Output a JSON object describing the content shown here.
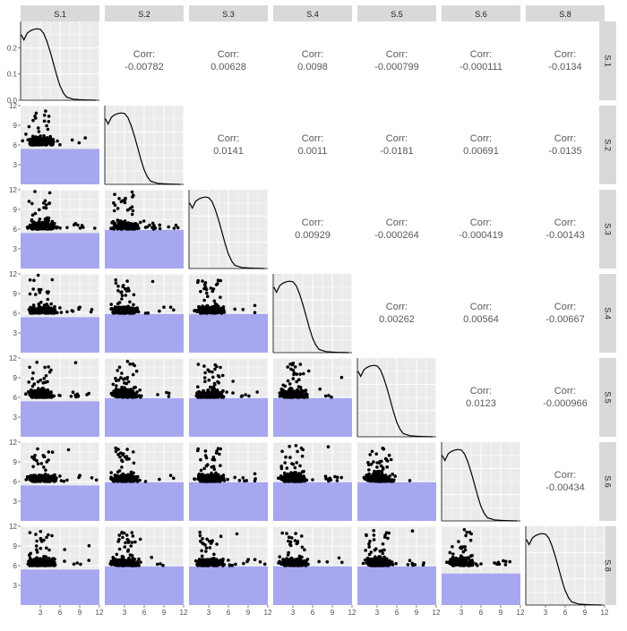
{
  "chart_data": {
    "type": "scatter-matrix",
    "title": "",
    "variables": [
      "S.1",
      "S.2",
      "S.3",
      "S.4",
      "S.5",
      "S.6",
      "S.8"
    ],
    "corr_label": "Corr:",
    "correlations": [
      [
        "S.1",
        "S.2",
        "-0.00782"
      ],
      [
        "S.1",
        "S.3",
        "0.00628"
      ],
      [
        "S.1",
        "S.4",
        "0.0098"
      ],
      [
        "S.1",
        "S.5",
        "-0.000799"
      ],
      [
        "S.1",
        "S.6",
        "-0.000111"
      ],
      [
        "S.1",
        "S.8",
        "-0.0134"
      ],
      [
        "S.2",
        "S.3",
        "0.0141"
      ],
      [
        "S.2",
        "S.4",
        "0.0011"
      ],
      [
        "S.2",
        "S.5",
        "-0.0181"
      ],
      [
        "S.2",
        "S.6",
        "0.00691"
      ],
      [
        "S.2",
        "S.8",
        "-0.0135"
      ],
      [
        "S.3",
        "S.4",
        "0.00929"
      ],
      [
        "S.3",
        "S.5",
        "-0.000264"
      ],
      [
        "S.3",
        "S.6",
        "-0.000419"
      ],
      [
        "S.3",
        "S.8",
        "-0.00143"
      ],
      [
        "S.4",
        "S.5",
        "0.00262"
      ],
      [
        "S.4",
        "S.6",
        "0.00564"
      ],
      [
        "S.4",
        "S.8",
        "-0.00667"
      ],
      [
        "S.5",
        "S.6",
        "0.0123"
      ],
      [
        "S.5",
        "S.8",
        "-0.000966"
      ],
      [
        "S.6",
        "S.8",
        "-0.00434"
      ]
    ],
    "x_ticks": [
      "3",
      "6",
      "9",
      "12"
    ],
    "x_range": [
      0,
      12
    ],
    "y_ticks": [
      "3",
      "6",
      "9",
      "12"
    ],
    "y_range": [
      0,
      12
    ],
    "density_y_ticks": [
      "0.0",
      "0.1",
      "0.2"
    ],
    "density_y_range": [
      0,
      0.3
    ],
    "density_curve": {
      "x": [
        0.1,
        0.5,
        1.0,
        1.5,
        2.0,
        2.5,
        3.0,
        3.5,
        4.0,
        4.5,
        5.0,
        5.5,
        6.0,
        6.5,
        7.0,
        8.0,
        9.0,
        10.0,
        11.5
      ],
      "y": [
        0.25,
        0.23,
        0.255,
        0.265,
        0.27,
        0.272,
        0.27,
        0.255,
        0.225,
        0.185,
        0.14,
        0.095,
        0.055,
        0.028,
        0.012,
        0.004,
        0.002,
        0.001,
        0.0
      ]
    },
    "shaded_band_upper_y": [
      5.4,
      5.9,
      5.9,
      5.9,
      5.9,
      4.8
    ],
    "colors": {
      "panel_bg": "#ebebeb",
      "grid": "#ffffff",
      "strip_bg": "#d9d9d9",
      "band": "#a7a7f0",
      "points": "#000000",
      "corr_text": "#595959",
      "axis_text": "#4d4d4d"
    },
    "grid": true
  }
}
